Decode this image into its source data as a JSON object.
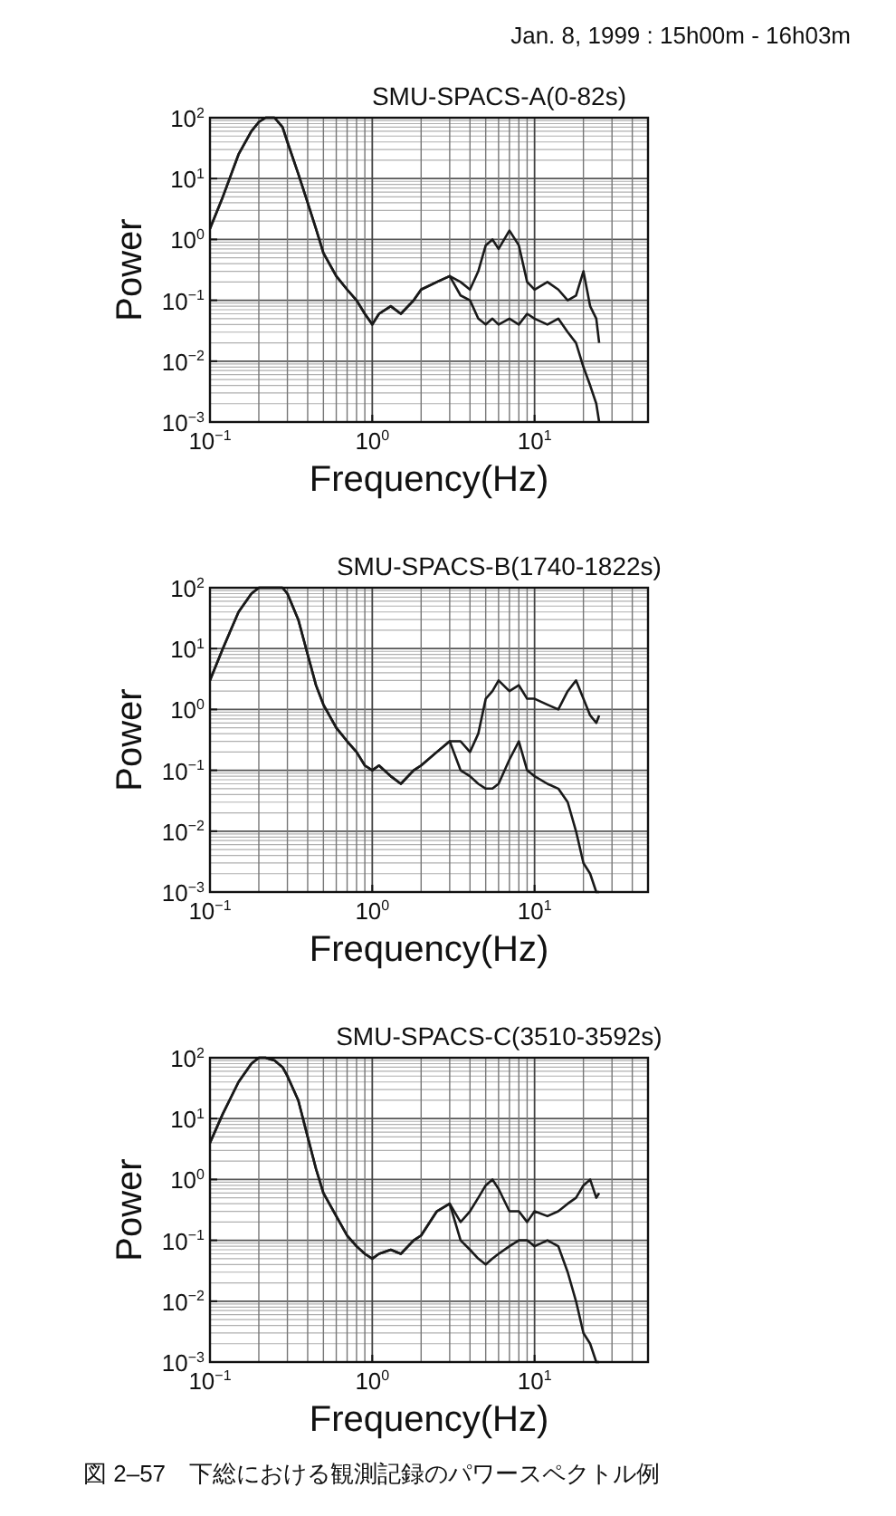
{
  "chart_data": [
    {
      "type": "line",
      "title": "SMU-SPACS-A(0-82s)",
      "xlabel": "Frequency(Hz)",
      "ylabel": "Power",
      "log": "xy",
      "grid": true,
      "annotations": [
        "Jan. 8, 1999 : 15h00m - 16h03m"
      ],
      "xlim": [
        0.1,
        50
      ],
      "ylim": [
        0.001,
        100
      ],
      "xticks": [
        {
          "value": 0.1,
          "label": "10$^{−1}$"
        },
        {
          "value": 1,
          "label": "10$^{0}$"
        },
        {
          "value": 10,
          "label": "10$^{1}$"
        }
      ],
      "yticks": [
        {
          "value": 0.001,
          "label": "10$^{−3}$"
        },
        {
          "value": 0.01,
          "label": "10$^{−2}$"
        },
        {
          "value": 0.1,
          "label": "10$^{−1}$"
        },
        {
          "value": 1,
          "label": "10$^{0}$"
        },
        {
          "value": 10,
          "label": "10$^{1}$"
        },
        {
          "value": 100,
          "label": "10$^{2}$"
        }
      ],
      "x": [
        0.1,
        0.12,
        0.15,
        0.18,
        0.2,
        0.22,
        0.25,
        0.28,
        0.3,
        0.35,
        0.4,
        0.45,
        0.5,
        0.6,
        0.7,
        0.8,
        0.9,
        1.0,
        1.1,
        1.3,
        1.5,
        1.8,
        2,
        2.5,
        3,
        3.5,
        4,
        4.5,
        5,
        5.5,
        6,
        7,
        8,
        9,
        10,
        12,
        14,
        16,
        18,
        20,
        22,
        24,
        25
      ],
      "series": [
        {
          "color": "#1a1a1a",
          "values": [
            1.5,
            5,
            25,
            60,
            85,
            100,
            100,
            70,
            40,
            12,
            4,
            1.5,
            0.6,
            0.25,
            0.15,
            0.1,
            0.06,
            0.04,
            0.06,
            0.08,
            0.06,
            0.1,
            0.15,
            0.2,
            0.25,
            0.12,
            0.1,
            0.05,
            0.04,
            0.05,
            0.04,
            0.05,
            0.04,
            0.06,
            0.05,
            0.04,
            0.05,
            0.03,
            0.02,
            0.008,
            0.004,
            0.002,
            0.001
          ]
        },
        {
          "color": "#1a1a1a",
          "values": [
            1.5,
            5,
            25,
            60,
            85,
            100,
            100,
            70,
            40,
            12,
            4,
            1.5,
            0.6,
            0.25,
            0.15,
            0.1,
            0.06,
            0.04,
            0.06,
            0.08,
            0.06,
            0.1,
            0.15,
            0.2,
            0.25,
            0.2,
            0.15,
            0.3,
            0.8,
            1.0,
            0.7,
            1.4,
            0.8,
            0.2,
            0.15,
            0.2,
            0.15,
            0.1,
            0.12,
            0.3,
            0.08,
            0.05,
            0.02
          ]
        }
      ]
    },
    {
      "type": "line",
      "title": "SMU-SPACS-B(1740-1822s)",
      "xlabel": "Frequency(Hz)",
      "ylabel": "Power",
      "log": "xy",
      "grid": true,
      "xlim": [
        0.1,
        50
      ],
      "ylim": [
        0.001,
        100
      ],
      "xticks": [
        {
          "value": 0.1,
          "label": "10$^{−1}$"
        },
        {
          "value": 1,
          "label": "10$^{0}$"
        },
        {
          "value": 10,
          "label": "10$^{1}$"
        }
      ],
      "yticks": [
        {
          "value": 0.001,
          "label": "10$^{−3}$"
        },
        {
          "value": 0.01,
          "label": "10$^{−2}$"
        },
        {
          "value": 0.1,
          "label": "10$^{−1}$"
        },
        {
          "value": 1,
          "label": "10$^{0}$"
        },
        {
          "value": 10,
          "label": "10$^{1}$"
        },
        {
          "value": 100,
          "label": "10$^{2}$"
        }
      ],
      "x": [
        0.1,
        0.12,
        0.15,
        0.18,
        0.2,
        0.22,
        0.25,
        0.28,
        0.3,
        0.35,
        0.4,
        0.45,
        0.5,
        0.6,
        0.7,
        0.8,
        0.9,
        1.0,
        1.1,
        1.3,
        1.5,
        1.8,
        2,
        2.5,
        3,
        3.5,
        4,
        4.5,
        5,
        5.5,
        6,
        7,
        8,
        9,
        10,
        12,
        14,
        16,
        18,
        20,
        22,
        24,
        25
      ],
      "series": [
        {
          "color": "#1a1a1a",
          "values": [
            3,
            10,
            40,
            80,
            100,
            100,
            100,
            100,
            80,
            30,
            8,
            2.5,
            1.2,
            0.5,
            0.3,
            0.2,
            0.12,
            0.1,
            0.12,
            0.08,
            0.06,
            0.1,
            0.12,
            0.2,
            0.3,
            0.1,
            0.08,
            0.06,
            0.05,
            0.05,
            0.06,
            0.15,
            0.3,
            0.1,
            0.08,
            0.06,
            0.05,
            0.03,
            0.01,
            0.003,
            0.002,
            0.001,
            0.001
          ]
        },
        {
          "color": "#1a1a1a",
          "values": [
            3,
            10,
            40,
            80,
            100,
            100,
            100,
            100,
            80,
            30,
            8,
            2.5,
            1.2,
            0.5,
            0.3,
            0.2,
            0.12,
            0.1,
            0.12,
            0.08,
            0.06,
            0.1,
            0.12,
            0.2,
            0.3,
            0.3,
            0.2,
            0.4,
            1.5,
            2,
            3,
            2,
            2.5,
            1.5,
            1.5,
            1.2,
            1.0,
            2,
            3,
            1.5,
            0.8,
            0.6,
            0.8
          ]
        }
      ]
    },
    {
      "type": "line",
      "title": "SMU-SPACS-C(3510-3592s)",
      "xlabel": "Frequency(Hz)",
      "ylabel": "Power",
      "log": "xy",
      "grid": true,
      "annotations": [
        "図 2–57　下総における観測記録のパワースペクトル例"
      ],
      "xlim": [
        0.1,
        50
      ],
      "ylim": [
        0.001,
        100
      ],
      "xticks": [
        {
          "value": 0.1,
          "label": "10$^{−1}$"
        },
        {
          "value": 1,
          "label": "10$^{0}$"
        },
        {
          "value": 10,
          "label": "10$^{1}$"
        }
      ],
      "yticks": [
        {
          "value": 0.001,
          "label": "10$^{−3}$"
        },
        {
          "value": 0.01,
          "label": "10$^{−2}$"
        },
        {
          "value": 0.1,
          "label": "10$^{−1}$"
        },
        {
          "value": 1,
          "label": "10$^{0}$"
        },
        {
          "value": 10,
          "label": "10$^{1}$"
        },
        {
          "value": 100,
          "label": "10$^{2}$"
        }
      ],
      "x": [
        0.1,
        0.12,
        0.15,
        0.18,
        0.2,
        0.22,
        0.25,
        0.28,
        0.3,
        0.35,
        0.4,
        0.45,
        0.5,
        0.6,
        0.7,
        0.8,
        0.9,
        1.0,
        1.1,
        1.3,
        1.5,
        1.8,
        2,
        2.5,
        3,
        3.5,
        4,
        4.5,
        5,
        5.5,
        6,
        7,
        8,
        9,
        10,
        12,
        14,
        16,
        18,
        20,
        22,
        24,
        25
      ],
      "series": [
        {
          "color": "#1a1a1a",
          "values": [
            4,
            12,
            40,
            80,
            100,
            100,
            90,
            70,
            50,
            20,
            5,
            1.5,
            0.6,
            0.25,
            0.12,
            0.08,
            0.06,
            0.05,
            0.06,
            0.07,
            0.06,
            0.1,
            0.12,
            0.3,
            0.4,
            0.1,
            0.07,
            0.05,
            0.04,
            0.05,
            0.06,
            0.08,
            0.1,
            0.1,
            0.08,
            0.1,
            0.08,
            0.03,
            0.01,
            0.003,
            0.002,
            0.001,
            0.001
          ]
        },
        {
          "color": "#1a1a1a",
          "values": [
            4,
            12,
            40,
            80,
            100,
            100,
            90,
            70,
            50,
            20,
            5,
            1.5,
            0.6,
            0.25,
            0.12,
            0.08,
            0.06,
            0.05,
            0.06,
            0.07,
            0.06,
            0.1,
            0.12,
            0.3,
            0.4,
            0.2,
            0.3,
            0.5,
            0.8,
            1.0,
            0.7,
            0.3,
            0.3,
            0.2,
            0.3,
            0.25,
            0.3,
            0.4,
            0.5,
            0.8,
            1.0,
            0.5,
            0.6
          ]
        }
      ]
    }
  ]
}
